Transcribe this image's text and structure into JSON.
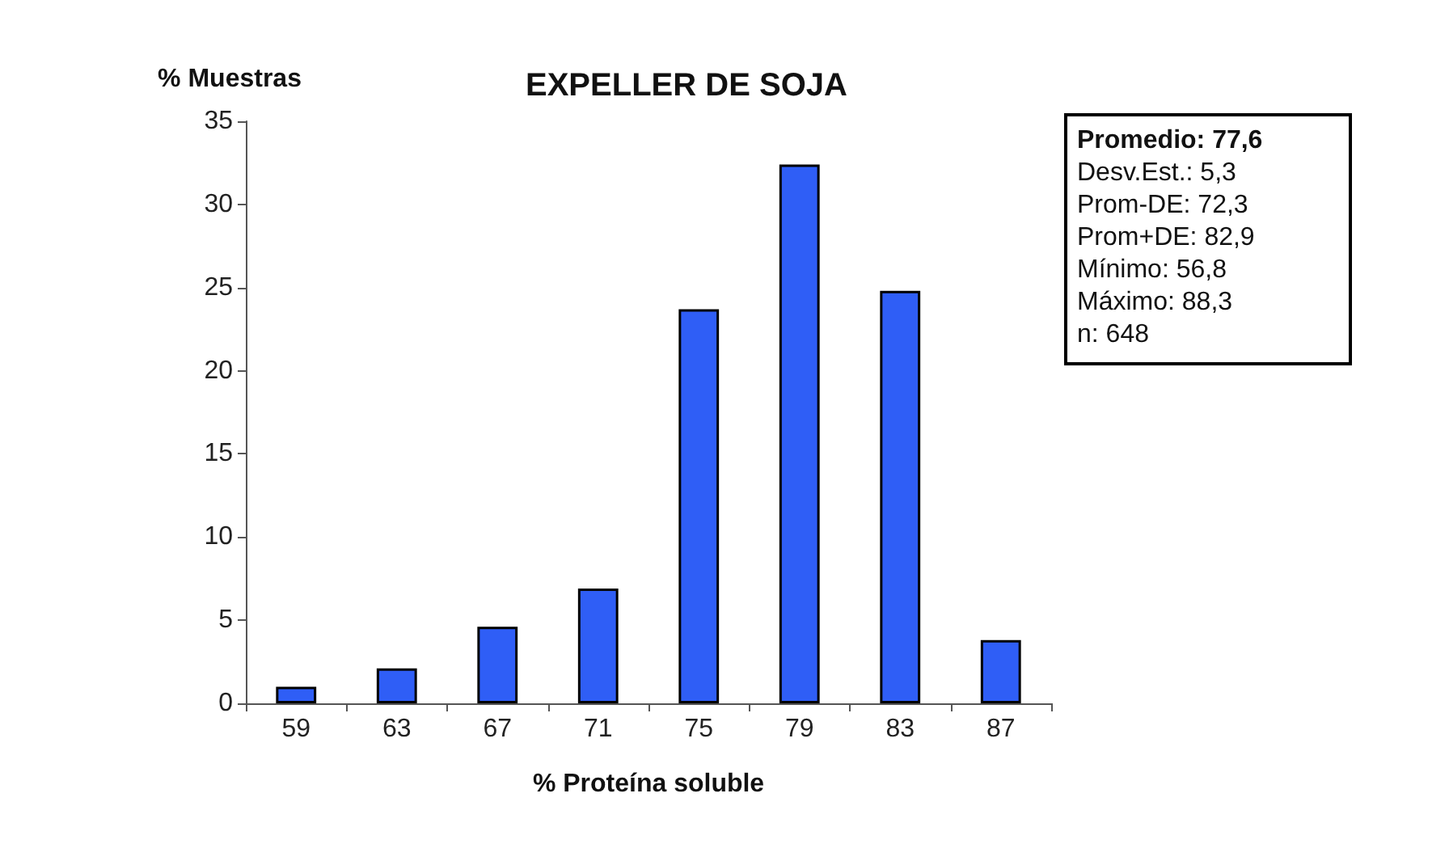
{
  "chart_data": {
    "type": "bar",
    "title": "EXPELLER DE SOJA",
    "xlabel": "% Proteína soluble",
    "ylabel": "% Muestras",
    "categories": [
      "59",
      "63",
      "67",
      "71",
      "75",
      "79",
      "83",
      "87"
    ],
    "values": [
      1.0,
      2.1,
      4.6,
      6.9,
      23.7,
      32.4,
      24.8,
      3.8
    ],
    "color": "#2f5ef6",
    "ylim": [
      0,
      35
    ],
    "yticks": [
      0,
      5,
      10,
      15,
      20,
      25,
      30,
      35
    ],
    "grid": false,
    "annotations": [
      "Promedio: 77,6",
      "Desv.Est.: 5,3",
      "Prom-DE: 72,3",
      "Prom+DE: 82,9",
      "Mínimo: 56,8",
      "Máximo: 88,3",
      "n: 648"
    ]
  }
}
